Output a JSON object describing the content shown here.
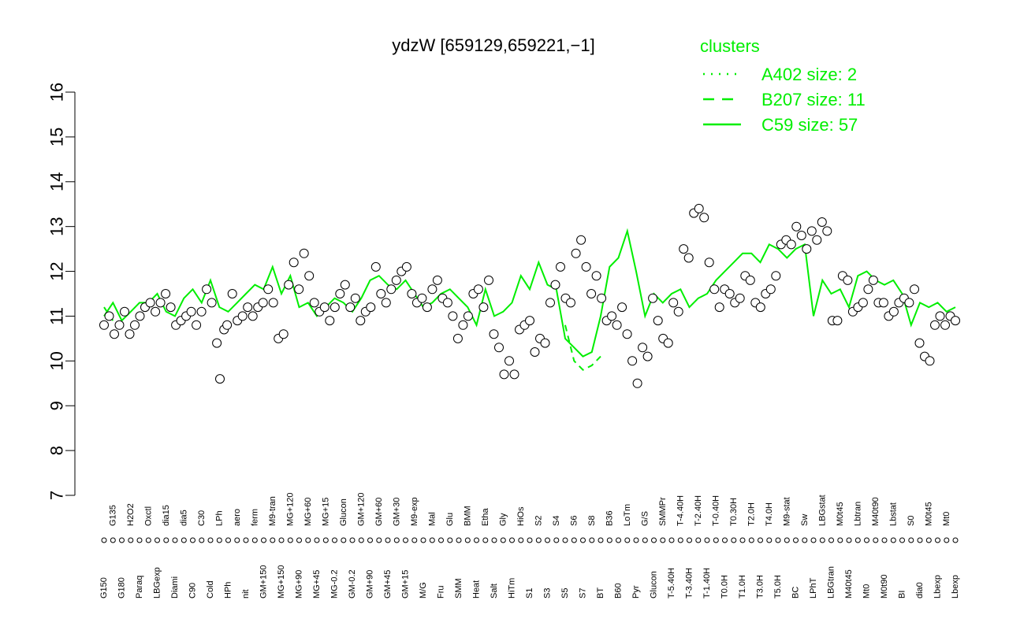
{
  "chart_data": {
    "type": "line",
    "title": "ydzW [659129,659221,−1]",
    "xlabel": "",
    "ylabel": "",
    "ylim": [
      7,
      16
    ],
    "yticks": [
      7,
      8,
      9,
      10,
      11,
      12,
      13,
      14,
      15,
      16
    ],
    "grid": false,
    "legend": {
      "title": "clusters",
      "placement": "top-right",
      "entries": [
        {
          "label": "A402 size: 2",
          "style": "dotted"
        },
        {
          "label": "B207 size: 11",
          "style": "dashed"
        },
        {
          "label": "C59 size: 57",
          "style": "solid"
        }
      ]
    },
    "x_tick_labels": [
      "G150",
      "G135",
      "G180",
      "H2O2",
      "Paraq",
      "Oxctl",
      "LBGexp",
      "dia15",
      "Diami",
      "dia5",
      "C90",
      "C30",
      "Cold",
      "LPh",
      "HPh",
      "aero",
      "nit",
      "ferm",
      "GM+150",
      "M9-tran",
      "MG+150",
      "MG+120",
      "MG+90",
      "MG+60",
      "MG+45",
      "MG+15",
      "MG-0.2",
      "Glucon",
      "GM-0.2",
      "GM+120",
      "GM+90",
      "GM+60",
      "GM+45",
      "GM+30",
      "GM+15",
      "M9-exp",
      "M/G",
      "Mal",
      "Fru",
      "Glu",
      "SMM",
      "BMM",
      "Heat",
      "Etha",
      "Salt",
      "Gly",
      "HiTm",
      "HiOs",
      "S1",
      "S2",
      "S3",
      "S4",
      "S5",
      "S6",
      "S7",
      "S8",
      "BT",
      "B36",
      "B60",
      "LoTm",
      "Pyr",
      "G/S",
      "Glucon",
      "SMMPr",
      "T-5.40H",
      "T-4.40H",
      "T-3.40H",
      "T-2.40H",
      "T-1.40H",
      "T-0.40H",
      "T0.0H",
      "T0.30H",
      "T1.0H",
      "T2.0H",
      "T3.0H",
      "T4.0H",
      "T5.0H",
      "M9-stat",
      "BC",
      "Sw",
      "LPhT",
      "LBGstat",
      "LBGtran",
      "M0t45",
      "M40t45",
      "Lbtran",
      "Mt0",
      "M40t90",
      "M0t90",
      "Lbstat",
      "BI",
      "S0",
      "dia0",
      "M0t45",
      "Lbexp",
      "Mt0",
      "Lbexp"
    ],
    "line_y": [
      11.0,
      11.3,
      10.9,
      11.1,
      11.3,
      11.3,
      11.5,
      11.1,
      11.0,
      11.4,
      11.6,
      11.3,
      11.8,
      11.2,
      11.1,
      11.3,
      11.5,
      11.7,
      11.6,
      12.1,
      11.5,
      11.9,
      11.2,
      11.3,
      11.0,
      11.2,
      11.4,
      11.3,
      11.1,
      11.4,
      11.8,
      11.9,
      11.7,
      11.6,
      11.8,
      11.5,
      11.2,
      11.3,
      11.5,
      11.6,
      11.4,
      11.2,
      10.8,
      11.6,
      11.0,
      11.1,
      11.3,
      11.9,
      11.6,
      12.2,
      11.7,
      11.6,
      10.5,
      10.3,
      10.1,
      10.2,
      11.0,
      12.1,
      12.3,
      12.9,
      12.0,
      11.0,
      11.5,
      11.3,
      11.5,
      11.6,
      11.2,
      11.4,
      11.5,
      11.8,
      12.0,
      12.2,
      12.4,
      12.4,
      12.2,
      12.6,
      12.5,
      12.3,
      12.5,
      12.6,
      11.0,
      11.8,
      11.5,
      11.6,
      11.2,
      11.9,
      12.0,
      11.8,
      11.7,
      11.8,
      11.5,
      10.8,
      11.3,
      11.2,
      11.3,
      11.1,
      11.2
    ],
    "dashed_y": [
      11.2,
      10.9,
      null,
      null,
      null,
      null,
      null,
      null,
      null,
      null,
      null,
      null,
      null,
      null,
      null,
      null,
      null,
      null,
      null,
      null,
      null,
      null,
      null,
      null,
      null,
      null,
      null,
      null,
      null,
      null,
      null,
      null,
      null,
      null,
      null,
      null,
      null,
      null,
      null,
      null,
      null,
      null,
      null,
      null,
      null,
      null,
      null,
      null,
      null,
      null,
      null,
      null,
      10.8,
      10.0,
      9.8,
      9.9,
      10.1,
      null,
      null,
      12.8,
      null,
      null,
      null,
      null,
      null,
      null,
      null,
      null,
      null,
      null,
      null,
      null,
      null,
      null,
      null,
      null,
      null,
      null,
      null,
      null,
      null,
      null,
      null,
      null,
      null,
      null,
      null,
      null,
      null,
      null,
      null,
      null,
      null,
      null,
      null,
      null,
      null
    ],
    "points": [
      [
        0,
        10.8
      ],
      [
        0.5,
        11.0
      ],
      [
        1,
        10.6
      ],
      [
        1.5,
        10.8
      ],
      [
        2,
        11.1
      ],
      [
        2.5,
        10.6
      ],
      [
        3,
        10.8
      ],
      [
        3.5,
        11.0
      ],
      [
        4,
        11.2
      ],
      [
        4.5,
        11.3
      ],
      [
        5,
        11.1
      ],
      [
        5.5,
        11.3
      ],
      [
        6,
        11.5
      ],
      [
        6.5,
        11.2
      ],
      [
        7,
        10.8
      ],
      [
        7.5,
        10.9
      ],
      [
        8,
        11.0
      ],
      [
        8.5,
        11.1
      ],
      [
        9,
        10.8
      ],
      [
        9.5,
        11.1
      ],
      [
        10,
        11.6
      ],
      [
        10.5,
        11.3
      ],
      [
        11,
        10.4
      ],
      [
        11.3,
        9.6
      ],
      [
        11.7,
        10.7
      ],
      [
        12,
        10.8
      ],
      [
        12.5,
        11.5
      ],
      [
        13,
        10.9
      ],
      [
        13.5,
        11.0
      ],
      [
        14,
        11.2
      ],
      [
        14.5,
        11.0
      ],
      [
        15,
        11.2
      ],
      [
        15.5,
        11.3
      ],
      [
        16,
        11.6
      ],
      [
        16.5,
        11.3
      ],
      [
        17,
        10.5
      ],
      [
        17.5,
        10.6
      ],
      [
        18,
        11.7
      ],
      [
        18.5,
        12.2
      ],
      [
        19,
        11.6
      ],
      [
        19.5,
        12.4
      ],
      [
        20,
        11.9
      ],
      [
        20.5,
        11.3
      ],
      [
        21,
        11.1
      ],
      [
        21.5,
        11.2
      ],
      [
        22,
        10.9
      ],
      [
        22.5,
        11.2
      ],
      [
        23,
        11.5
      ],
      [
        23.5,
        11.7
      ],
      [
        24,
        11.2
      ],
      [
        24.5,
        11.4
      ],
      [
        25,
        10.9
      ],
      [
        25.5,
        11.1
      ],
      [
        26,
        11.2
      ],
      [
        26.5,
        12.1
      ],
      [
        27,
        11.5
      ],
      [
        27.5,
        11.3
      ],
      [
        28,
        11.6
      ],
      [
        28.5,
        11.8
      ],
      [
        29,
        12.0
      ],
      [
        29.5,
        12.1
      ],
      [
        30,
        11.5
      ],
      [
        30.5,
        11.3
      ],
      [
        31,
        11.4
      ],
      [
        31.5,
        11.2
      ],
      [
        32,
        11.6
      ],
      [
        32.5,
        11.8
      ],
      [
        33,
        11.4
      ],
      [
        33.5,
        11.3
      ],
      [
        34,
        11.0
      ],
      [
        34.5,
        10.5
      ],
      [
        35,
        10.8
      ],
      [
        35.5,
        11.0
      ],
      [
        36,
        11.5
      ],
      [
        36.5,
        11.6
      ],
      [
        37,
        11.2
      ],
      [
        37.5,
        11.8
      ],
      [
        38,
        10.6
      ],
      [
        38.5,
        10.3
      ],
      [
        39,
        9.7
      ],
      [
        39.5,
        10.0
      ],
      [
        40,
        9.7
      ],
      [
        40.5,
        10.7
      ],
      [
        41,
        10.8
      ],
      [
        41.5,
        10.9
      ],
      [
        42,
        10.2
      ],
      [
        42.5,
        10.5
      ],
      [
        43,
        10.4
      ],
      [
        43.5,
        11.3
      ],
      [
        44,
        11.7
      ],
      [
        44.5,
        12.1
      ],
      [
        45,
        11.4
      ],
      [
        45.5,
        11.3
      ],
      [
        46,
        12.4
      ],
      [
        46.5,
        12.7
      ],
      [
        47,
        12.1
      ],
      [
        47.5,
        11.5
      ],
      [
        48,
        11.9
      ],
      [
        48.5,
        11.4
      ],
      [
        49,
        10.9
      ],
      [
        49.5,
        11.0
      ],
      [
        50,
        10.8
      ],
      [
        50.5,
        11.2
      ],
      [
        51,
        10.6
      ],
      [
        51.5,
        10.0
      ],
      [
        52,
        9.5
      ],
      [
        52.5,
        10.3
      ],
      [
        53,
        10.1
      ],
      [
        53.5,
        11.4
      ],
      [
        54,
        10.9
      ],
      [
        54.5,
        10.5
      ],
      [
        55,
        10.4
      ],
      [
        55.5,
        11.3
      ],
      [
        56,
        11.1
      ],
      [
        56.5,
        12.5
      ],
      [
        57,
        12.3
      ],
      [
        57.5,
        13.3
      ],
      [
        58,
        13.4
      ],
      [
        58.5,
        13.2
      ],
      [
        59,
        12.2
      ],
      [
        59.5,
        11.6
      ],
      [
        60,
        11.2
      ],
      [
        60.5,
        11.6
      ],
      [
        61,
        11.5
      ],
      [
        61.5,
        11.3
      ],
      [
        62,
        11.4
      ],
      [
        62.5,
        11.9
      ],
      [
        63,
        11.8
      ],
      [
        63.5,
        11.3
      ],
      [
        64,
        11.2
      ],
      [
        64.5,
        11.5
      ],
      [
        65,
        11.6
      ],
      [
        65.5,
        11.9
      ],
      [
        66,
        12.6
      ],
      [
        66.5,
        12.7
      ],
      [
        67,
        12.6
      ],
      [
        67.5,
        13.0
      ],
      [
        68,
        12.8
      ],
      [
        68.5,
        12.5
      ],
      [
        69,
        12.9
      ],
      [
        69.5,
        12.7
      ],
      [
        70,
        13.1
      ],
      [
        70.5,
        12.9
      ],
      [
        71,
        10.9
      ],
      [
        71.5,
        10.9
      ],
      [
        72,
        11.9
      ],
      [
        72.5,
        11.8
      ],
      [
        73,
        11.1
      ],
      [
        73.5,
        11.2
      ],
      [
        74,
        11.3
      ],
      [
        74.5,
        11.6
      ],
      [
        75,
        11.8
      ],
      [
        75.5,
        11.3
      ],
      [
        76,
        11.3
      ],
      [
        76.5,
        11.0
      ],
      [
        77,
        11.1
      ],
      [
        77.5,
        11.3
      ],
      [
        78,
        11.4
      ],
      [
        78.5,
        11.3
      ],
      [
        79,
        11.6
      ],
      [
        79.5,
        10.4
      ],
      [
        80,
        10.1
      ],
      [
        80.5,
        10.0
      ],
      [
        81,
        10.8
      ],
      [
        81.5,
        11.0
      ],
      [
        82,
        10.8
      ],
      [
        82.5,
        11.0
      ],
      [
        83,
        10.9
      ]
    ]
  },
  "colors": {
    "cluster": "#00ee00",
    "points_fill": "#ffffff",
    "points_stroke": "#000000",
    "axis": "#000000"
  }
}
